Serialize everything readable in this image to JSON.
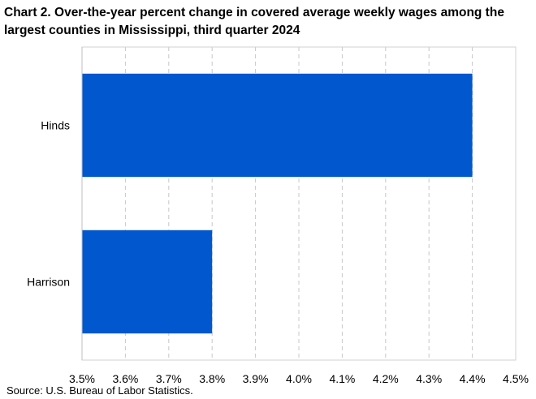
{
  "chart_data": {
    "type": "bar",
    "orientation": "horizontal",
    "title": "Chart 2. Over-the-year percent change in covered average weekly wages among the largest counties in Mississippi, third quarter 2024",
    "categories": [
      "Hinds",
      "Harrison"
    ],
    "values": [
      4.4,
      3.8
    ],
    "xlim": [
      3.5,
      4.5
    ],
    "x_ticks": [
      3.5,
      3.6,
      3.7,
      3.8,
      3.9,
      4.0,
      4.1,
      4.2,
      4.3,
      4.4,
      4.5
    ],
    "tick_format": "percent_1dp",
    "xlabel": "",
    "ylabel": "",
    "grid": "vertical dashed",
    "legend": "none",
    "bar_color": "#0057CE",
    "source": "Source: U.S. Bureau of Labor Statistics."
  }
}
